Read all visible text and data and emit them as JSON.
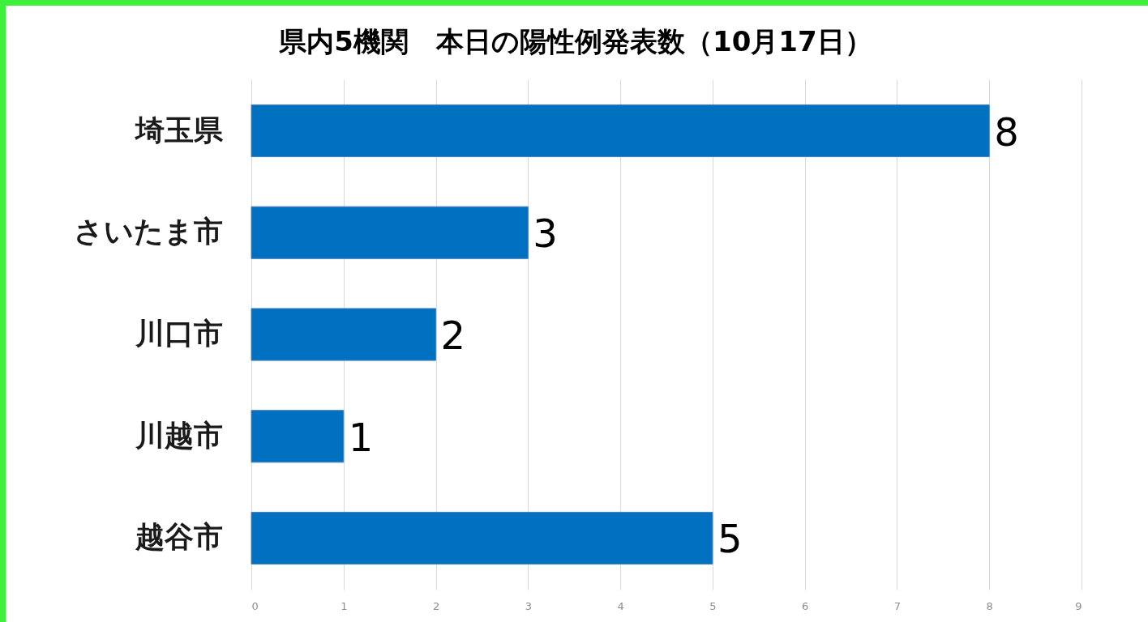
{
  "chart_data": {
    "type": "bar",
    "orientation": "horizontal",
    "title": "県内5機関　本日の陽性例発表数（10月17日）",
    "categories": [
      "埼玉県",
      "さいたま市",
      "川口市",
      "川越市",
      "越谷市"
    ],
    "values": [
      8,
      3,
      2,
      1,
      5
    ],
    "color": "#0070c0",
    "xlim": [
      0,
      9
    ],
    "xticks": [
      0,
      1,
      2,
      3,
      4,
      5,
      6,
      7,
      8,
      9
    ],
    "grid": "x",
    "data_labels": true
  }
}
